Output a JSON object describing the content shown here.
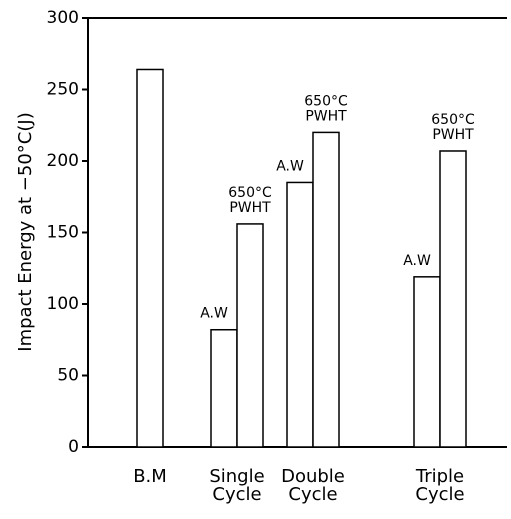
{
  "chart_data": {
    "type": "bar",
    "y_label": "Impact Energy at −50°C(J)",
    "ylim": [
      0,
      300
    ],
    "yticks": [
      0,
      50,
      100,
      150,
      200,
      250,
      300
    ],
    "color": "#ffffff",
    "edge_color": "#000000",
    "groups": [
      {
        "category": [
          "B.M"
        ],
        "bars": [
          {
            "value": 264
          }
        ]
      },
      {
        "category": [
          "Single",
          "Cycle"
        ],
        "bars": [
          {
            "value": 82,
            "label": [
              "A.W"
            ]
          },
          {
            "value": 156,
            "label": [
              "650°C",
              "PWHT"
            ]
          }
        ]
      },
      {
        "category": [
          "Double",
          "Cycle"
        ],
        "bars": [
          {
            "value": 185,
            "label": [
              "A.W"
            ]
          },
          {
            "value": 220,
            "label": [
              "650°C",
              "PWHT"
            ]
          }
        ]
      },
      {
        "category": [
          "Triple",
          "Cycle"
        ],
        "bars": [
          {
            "value": 119,
            "label": [
              "A.W"
            ]
          },
          {
            "value": 207,
            "label": [
              "650°C",
              "PWHT"
            ]
          }
        ]
      }
    ]
  }
}
